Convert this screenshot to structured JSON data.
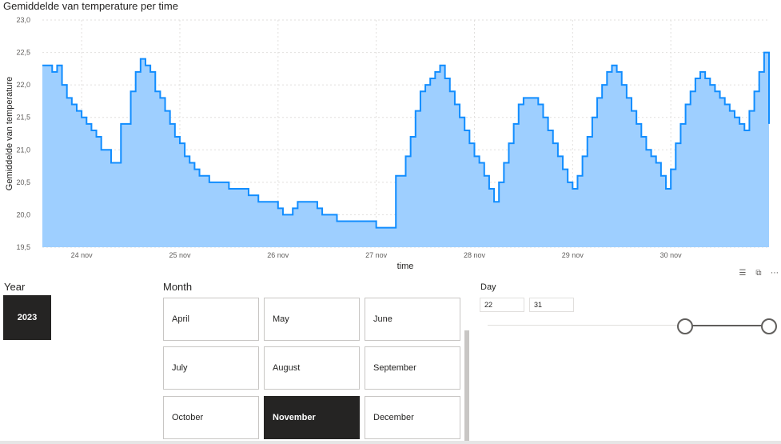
{
  "chart_data": {
    "type": "area",
    "title": "Gemiddelde van temperature per time",
    "xlabel": "time",
    "ylabel": "Gemiddelde van temperature",
    "ylim": [
      19.5,
      23.0
    ],
    "yticks": [
      "19,5",
      "20,0",
      "20,5",
      "21,0",
      "21,5",
      "22,0",
      "22,5",
      "23,0"
    ],
    "xlim": [
      23.6,
      31.0
    ],
    "xticks": [
      {
        "value": 24,
        "label": "24 nov"
      },
      {
        "value": 25,
        "label": "25 nov"
      },
      {
        "value": 26,
        "label": "26 nov"
      },
      {
        "value": 27,
        "label": "27 nov"
      },
      {
        "value": 28,
        "label": "28 nov"
      },
      {
        "value": 29,
        "label": "29 nov"
      },
      {
        "value": 30,
        "label": "30 nov"
      }
    ],
    "grid": true,
    "line_color": "#118DFF",
    "fill_color": "#9ECFFF",
    "series": [
      {
        "x": [
          23.6,
          23.7,
          23.75,
          23.8,
          23.85,
          23.9,
          23.95,
          24.0,
          24.05,
          24.1,
          24.15,
          24.2,
          24.3,
          24.4,
          24.5,
          24.55,
          24.6,
          24.65,
          24.7,
          24.75,
          24.8,
          24.85,
          24.9,
          24.95,
          25.0,
          25.05,
          25.1,
          25.15,
          25.2,
          25.3,
          25.4,
          25.5,
          25.6,
          25.7,
          25.8,
          25.9,
          26.0,
          26.05,
          26.1,
          26.15,
          26.2,
          26.3,
          26.4,
          26.45,
          26.5,
          26.6,
          26.7,
          26.8,
          26.9,
          27.0,
          27.1,
          27.2,
          27.3,
          27.35,
          27.4,
          27.45,
          27.5,
          27.55,
          27.6,
          27.65,
          27.7,
          27.75,
          27.8,
          27.85,
          27.9,
          27.95,
          28.0,
          28.05,
          28.1,
          28.15,
          28.2,
          28.25,
          28.3,
          28.35,
          28.4,
          28.45,
          28.5,
          28.55,
          28.6,
          28.65,
          28.7,
          28.75,
          28.8,
          28.85,
          28.9,
          28.95,
          29.0,
          29.05,
          29.1,
          29.15,
          29.2,
          29.25,
          29.3,
          29.35,
          29.4,
          29.45,
          29.5,
          29.55,
          29.6,
          29.65,
          29.7,
          29.75,
          29.8,
          29.85,
          29.9,
          29.95,
          30.0,
          30.05,
          30.1,
          30.15,
          30.2,
          30.25,
          30.3,
          30.35,
          30.4,
          30.45,
          30.5,
          30.55,
          30.6,
          30.65,
          30.7,
          30.75,
          30.8,
          30.85,
          30.9,
          30.95,
          31.0
        ],
        "values": [
          22.3,
          22.2,
          22.3,
          22.0,
          21.8,
          21.7,
          21.6,
          21.5,
          21.4,
          21.3,
          21.2,
          21.0,
          20.8,
          21.4,
          21.9,
          22.2,
          22.4,
          22.3,
          22.2,
          21.9,
          21.8,
          21.6,
          21.4,
          21.2,
          21.1,
          20.9,
          20.8,
          20.7,
          20.6,
          20.5,
          20.5,
          20.4,
          20.4,
          20.3,
          20.2,
          20.2,
          20.1,
          20.0,
          20.0,
          20.1,
          20.2,
          20.2,
          20.1,
          20.0,
          20.0,
          19.9,
          19.9,
          19.9,
          19.9,
          19.8,
          19.8,
          20.6,
          20.9,
          21.2,
          21.6,
          21.9,
          22.0,
          22.1,
          22.2,
          22.3,
          22.1,
          21.9,
          21.7,
          21.5,
          21.3,
          21.1,
          20.9,
          20.8,
          20.6,
          20.4,
          20.2,
          20.5,
          20.8,
          21.1,
          21.4,
          21.7,
          21.8,
          21.8,
          21.8,
          21.7,
          21.5,
          21.3,
          21.1,
          20.9,
          20.7,
          20.5,
          20.4,
          20.6,
          20.9,
          21.2,
          21.5,
          21.8,
          22.0,
          22.2,
          22.3,
          22.2,
          22.0,
          21.8,
          21.6,
          21.4,
          21.2,
          21.0,
          20.9,
          20.8,
          20.6,
          20.4,
          20.7,
          21.1,
          21.4,
          21.7,
          21.9,
          22.1,
          22.2,
          22.1,
          22.0,
          21.9,
          21.8,
          21.7,
          21.6,
          21.5,
          21.4,
          21.3,
          21.6,
          21.9,
          22.2,
          22.5,
          21.4
        ]
      }
    ]
  },
  "visual_icons": [
    "filter-icon",
    "focus-mode-icon",
    "more-options-icon"
  ],
  "year_slicer": {
    "title": "Year",
    "options": [
      "2023"
    ],
    "selected": "2023"
  },
  "month_slicer": {
    "title": "Month",
    "options": [
      "April",
      "May",
      "June",
      "July",
      "August",
      "September",
      "October",
      "November",
      "December"
    ],
    "selected": "November"
  },
  "day_slicer": {
    "title": "Day",
    "min_value": "22",
    "max_value": "31",
    "range_min": 1,
    "range_max": 31
  }
}
